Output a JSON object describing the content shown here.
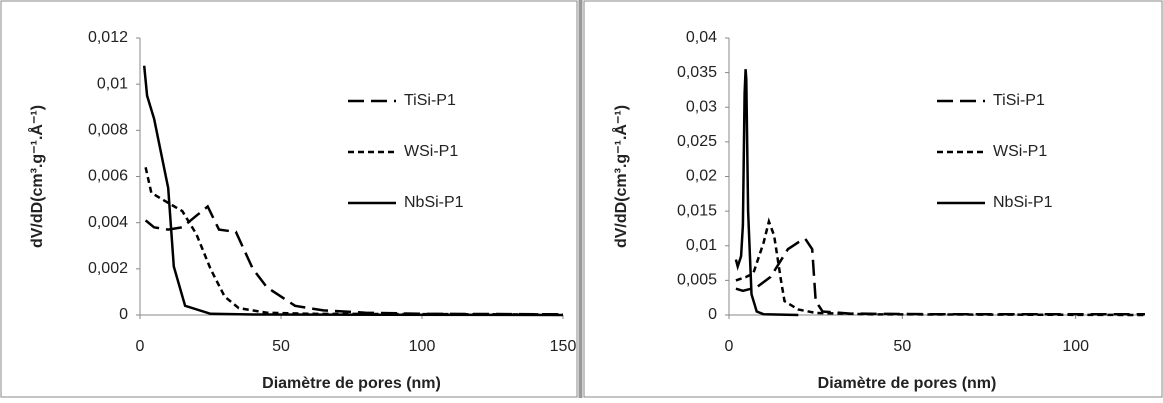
{
  "chart_data": [
    {
      "type": "line",
      "xlabel": "Diamètre de pores (nm)",
      "ylabel": "dV/dD(cm³.g⁻¹.Å⁻¹)",
      "xlim": [
        0,
        150
      ],
      "xticks": [
        0,
        50,
        100,
        150
      ],
      "ylim": [
        0,
        0.012
      ],
      "yticks": [
        0,
        {
          "value": 0.002,
          "label": "0,002"
        },
        {
          "value": 0.004,
          "label": "0,004"
        },
        {
          "value": 0.006,
          "label": "0,006"
        },
        {
          "value": 0.008,
          "label": "0,008"
        },
        {
          "value": 0.01,
          "label": "0,01"
        },
        {
          "value": 0.012,
          "label": "0,012"
        }
      ],
      "series": [
        {
          "name": "TiSi-P1",
          "color": "#000000",
          "linestyle": "dashed",
          "x": [
            2,
            5,
            10,
            15,
            20,
            24,
            28,
            34,
            40,
            45,
            55,
            65,
            80,
            100,
            150
          ],
          "values": [
            0.0041,
            0.0038,
            0.0037,
            0.0038,
            0.0043,
            0.0047,
            0.0037,
            0.0036,
            0.002,
            0.0012,
            0.0004,
            0.0002,
            0.0001,
            5e-05,
            3e-05
          ]
        },
        {
          "name": "WSi-P1",
          "color": "#000000",
          "linestyle": "dotted",
          "x": [
            2,
            4,
            8,
            15,
            20,
            25,
            30,
            35,
            45,
            60,
            150
          ],
          "values": [
            0.0064,
            0.0053,
            0.005,
            0.0045,
            0.0035,
            0.002,
            0.0008,
            0.0003,
            0.0001,
            5e-05,
            2e-05
          ]
        },
        {
          "name": "NbSi-P1",
          "color": "#000000",
          "linestyle": "solid",
          "x": [
            1.5,
            2.5,
            5,
            10,
            12,
            16,
            25,
            40,
            150
          ],
          "values": [
            0.0108,
            0.0095,
            0.0085,
            0.0055,
            0.0021,
            0.0004,
            5e-05,
            2e-05,
            0
          ]
        }
      ]
    },
    {
      "type": "line",
      "xlabel": "Diamètre de pores (nm)",
      "ylabel": "dV/dD(cm³.g⁻¹.Å⁻¹)",
      "xlim": [
        0,
        120
      ],
      "xticks": [
        0,
        50,
        100
      ],
      "ylim": [
        0,
        0.04
      ],
      "yticks": [
        0,
        {
          "value": 0.005,
          "label": "0,005"
        },
        {
          "value": 0.01,
          "label": "0,01"
        },
        {
          "value": 0.015,
          "label": "0,015"
        },
        {
          "value": 0.02,
          "label": "0,02"
        },
        {
          "value": 0.025,
          "label": "0,025"
        },
        {
          "value": 0.03,
          "label": "0,03"
        },
        {
          "value": 0.035,
          "label": "0,035"
        },
        {
          "value": 0.04,
          "label": "0,04"
        }
      ],
      "series": [
        {
          "name": "TiSi-P1",
          "color": "#000000",
          "linestyle": "dashed",
          "x": [
            2,
            4,
            8,
            12,
            17,
            20,
            22,
            24,
            25,
            27,
            35,
            60,
            120
          ],
          "values": [
            0.0038,
            0.0035,
            0.004,
            0.0055,
            0.0095,
            0.0105,
            0.011,
            0.0095,
            0.002,
            0.0005,
            0.0002,
            0.0001,
            0.0001
          ]
        },
        {
          "name": "WSi-P1",
          "color": "#000000",
          "linestyle": "dotted",
          "x": [
            2,
            5,
            7,
            10,
            11.5,
            13,
            15,
            16,
            20,
            25,
            40,
            120
          ],
          "values": [
            0.005,
            0.0055,
            0.006,
            0.0105,
            0.0135,
            0.0115,
            0.005,
            0.002,
            0.0008,
            0.0003,
            0.0001,
            0
          ]
        },
        {
          "name": "NbSi-P1",
          "color": "#000000",
          "linestyle": "solid",
          "x": [
            2,
            2.5,
            3.5,
            4,
            4.5,
            4.8,
            5,
            5.5,
            6.5,
            8,
            10,
            20
          ],
          "values": [
            0.008,
            0.007,
            0.0085,
            0.013,
            0.032,
            0.0355,
            0.034,
            0.015,
            0.003,
            0.0005,
            0.0001,
            0
          ]
        }
      ]
    }
  ]
}
